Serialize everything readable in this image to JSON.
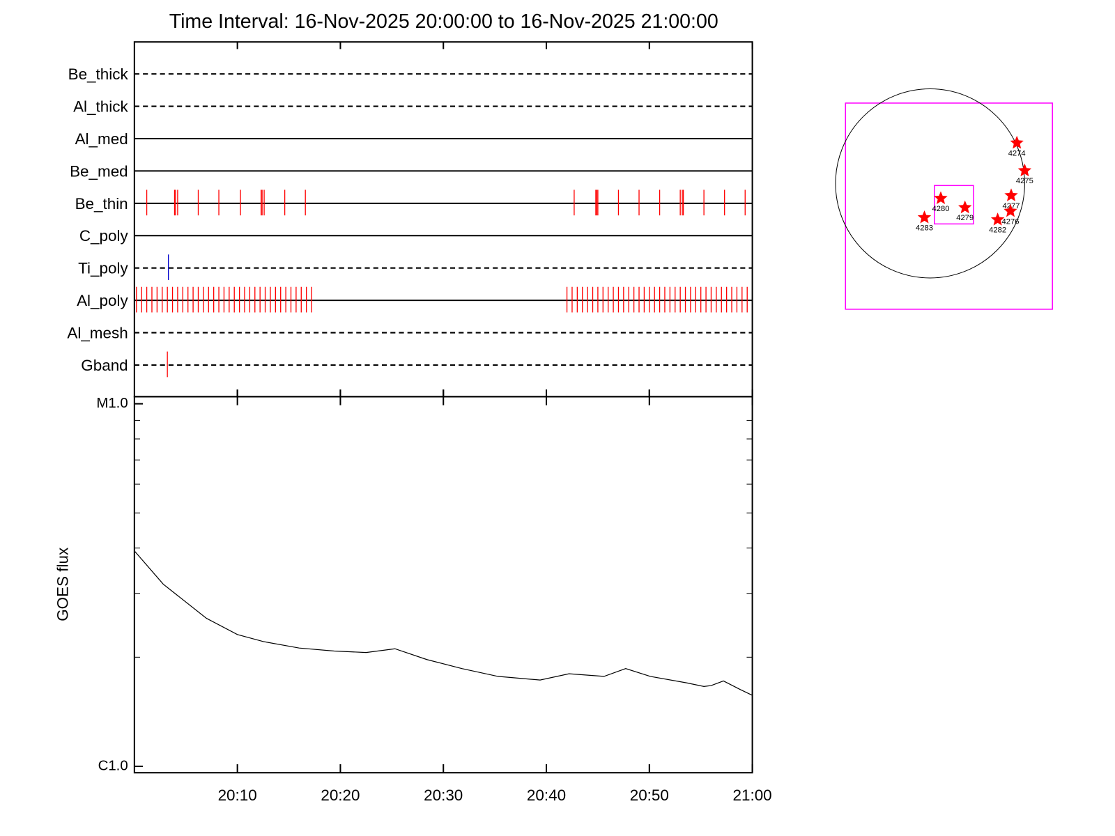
{
  "chart_data": [
    {
      "type": "event",
      "title": "Time Interval: 16-Nov-2025 20:00:00 to 16-Nov-2025 21:00:00",
      "xlim": [
        0,
        60
      ],
      "xticks": [
        10,
        20,
        30,
        40,
        50,
        60
      ],
      "series": [
        {
          "name": "Be_thick",
          "linestyle": "dashed",
          "color": "#ff0000",
          "values": []
        },
        {
          "name": "Al_thick",
          "linestyle": "dashed",
          "color": "#ff0000",
          "values": []
        },
        {
          "name": "Al_med",
          "linestyle": "solid",
          "color": "#ff0000",
          "values": []
        },
        {
          "name": "Be_med",
          "linestyle": "solid",
          "color": "#ff0000",
          "values": []
        },
        {
          "name": "Be_thin",
          "linestyle": "solid",
          "color": "#ff0000",
          "values": [
            1.2,
            3.9,
            4.0,
            4.2,
            6.2,
            8.2,
            10.3,
            12.3,
            12.4,
            12.6,
            14.6,
            16.6,
            42.7,
            44.8,
            44.9,
            45.0,
            47.0,
            49.0,
            51.0,
            53.0,
            53.2,
            53.3,
            55.3,
            57.3,
            59.3
          ]
        },
        {
          "name": "C_poly",
          "linestyle": "solid",
          "color": "#ff0000",
          "values": []
        },
        {
          "name": "Ti_poly",
          "linestyle": "dashed",
          "color": "#0000cc",
          "values": [
            3.3
          ]
        },
        {
          "name": "Al_poly",
          "linestyle": "solid",
          "color": "#ff0000",
          "values": [
            0.2,
            0.7,
            1.2,
            1.7,
            2.2,
            2.7,
            3.2,
            3.7,
            4.2,
            4.7,
            5.2,
            5.7,
            6.2,
            6.7,
            7.2,
            7.7,
            8.2,
            8.7,
            9.2,
            9.7,
            10.2,
            10.7,
            11.2,
            11.7,
            12.2,
            12.7,
            13.2,
            13.7,
            14.2,
            14.7,
            15.2,
            15.7,
            16.2,
            16.7,
            17.2,
            42.0,
            42.5,
            43.0,
            43.5,
            44.0,
            44.5,
            45.0,
            45.5,
            46.0,
            46.5,
            47.0,
            47.5,
            48.0,
            48.5,
            49.0,
            49.5,
            50.0,
            50.5,
            51.0,
            51.5,
            52.0,
            52.5,
            53.0,
            53.5,
            54.0,
            54.5,
            55.0,
            55.5,
            56.0,
            56.5,
            57.0,
            57.5,
            58.0,
            58.5,
            59.0,
            59.5
          ]
        },
        {
          "name": "Al_mesh",
          "linestyle": "dashed",
          "color": "#ff0000",
          "values": []
        },
        {
          "name": "Gband",
          "linestyle": "dashed",
          "color": "#ff0000",
          "values": [
            3.2
          ]
        }
      ]
    },
    {
      "type": "line",
      "ylabel": "GOES flux",
      "log": true,
      "color": "#000000",
      "x": [
        0,
        2.8,
        7,
        10,
        12.5,
        16,
        19.4,
        22.5,
        25.3,
        28.4,
        31.8,
        35.3,
        39.4,
        42.2,
        45.6,
        47.7,
        50.1,
        53.6,
        55.3,
        56,
        57.2,
        58.8,
        60
      ],
      "values": [
        3.93e-06,
        3.18e-06,
        2.56e-06,
        2.31e-06,
        2.21e-06,
        2.12e-06,
        2.08e-06,
        2.06e-06,
        2.11e-06,
        1.97e-06,
        1.86e-06,
        1.77e-06,
        1.73e-06,
        1.8e-06,
        1.77e-06,
        1.86e-06,
        1.77e-06,
        1.7e-06,
        1.66e-06,
        1.67e-06,
        1.72e-06,
        1.63e-06,
        1.57e-06
      ],
      "xlim": [
        0,
        60
      ],
      "xticks": [
        {
          "value": 10,
          "label": "20:10"
        },
        {
          "value": 20,
          "label": "20:20"
        },
        {
          "value": 30,
          "label": "20:30"
        },
        {
          "value": 40,
          "label": "20:40"
        },
        {
          "value": 50,
          "label": "20:50"
        },
        {
          "value": 60,
          "label": "21:00"
        }
      ],
      "ylim": [
        1e-06,
        1e-05
      ],
      "yticks": [
        {
          "value": 1e-06,
          "label": "C1.0"
        },
        {
          "value": 1e-05,
          "label": "M1.0"
        }
      ],
      "yminorticks": [
        2e-06,
        3e-06,
        4e-06,
        5e-06,
        6e-06,
        7e-06,
        8e-06,
        9e-06
      ]
    }
  ],
  "map": {
    "regions": [
      "4274",
      "4275",
      "4277",
      "4276",
      "4282",
      "4280",
      "4279",
      "4283"
    ]
  }
}
